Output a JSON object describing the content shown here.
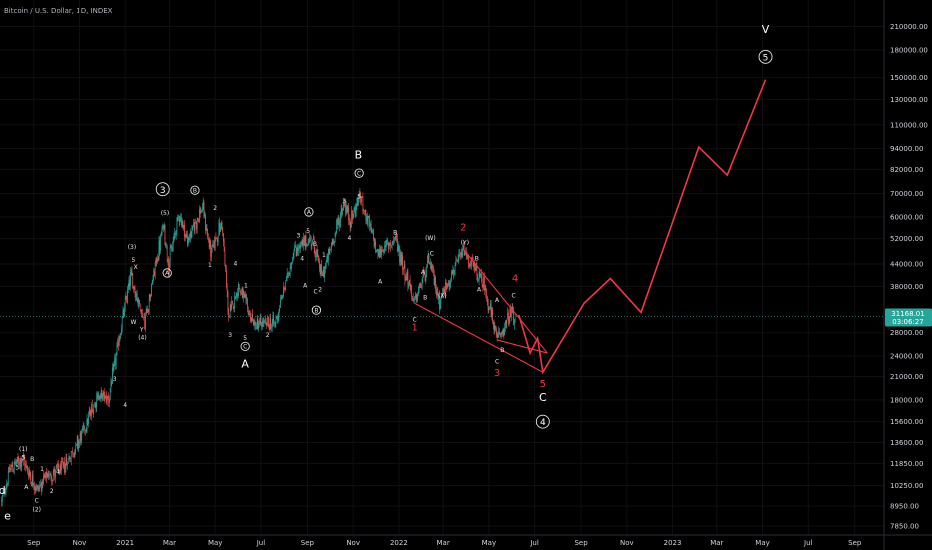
{
  "chart_data": {
    "type": "candlestick",
    "title": "Bitcoin / U.S. Dollar, 1D, INDEX",
    "y_scale": "log",
    "ylim": [
      7400,
      250000
    ],
    "xlim": [
      "2020-07-18",
      "2023-10-10"
    ],
    "y_ticks": [
      {
        "value": 7850,
        "label": "7850.00"
      },
      {
        "value": 8950,
        "label": "8950.00"
      },
      {
        "value": 10250,
        "label": "10250.00"
      },
      {
        "value": 11850,
        "label": "11850.00"
      },
      {
        "value": 13600,
        "label": "13600.00"
      },
      {
        "value": 15600,
        "label": "15600.00"
      },
      {
        "value": 18000,
        "label": "18000.00"
      },
      {
        "value": 21000,
        "label": "21000.00"
      },
      {
        "value": 24000,
        "label": "24000.00"
      },
      {
        "value": 28000,
        "label": "28000.00"
      },
      {
        "value": 38000,
        "label": "38000.00"
      },
      {
        "value": 44000,
        "label": "44000.00"
      },
      {
        "value": 52000,
        "label": "52000.00"
      },
      {
        "value": 60000,
        "label": "60000.00"
      },
      {
        "value": 70000,
        "label": "70000.00"
      },
      {
        "value": 82000,
        "label": "82000.00"
      },
      {
        "value": 94000,
        "label": "94000.00"
      },
      {
        "value": 110000,
        "label": "110000.00"
      },
      {
        "value": 130000,
        "label": "130000.00"
      },
      {
        "value": 150000,
        "label": "150000.00"
      },
      {
        "value": 180000,
        "label": "180000.00"
      },
      {
        "value": 210000,
        "label": "210000.00"
      }
    ],
    "x_ticks": [
      {
        "date": "2020-09-01",
        "label": "Sep"
      },
      {
        "date": "2020-11-01",
        "label": "Nov"
      },
      {
        "date": "2021-01-01",
        "label": "2021"
      },
      {
        "date": "2021-03-01",
        "label": "Mar"
      },
      {
        "date": "2021-05-01",
        "label": "May"
      },
      {
        "date": "2021-07-01",
        "label": "Jul"
      },
      {
        "date": "2021-09-01",
        "label": "Sep"
      },
      {
        "date": "2021-11-01",
        "label": "Nov"
      },
      {
        "date": "2022-01-01",
        "label": "2022"
      },
      {
        "date": "2022-03-01",
        "label": "Mar"
      },
      {
        "date": "2022-05-01",
        "label": "May"
      },
      {
        "date": "2022-07-01",
        "label": "Jul"
      },
      {
        "date": "2022-09-01",
        "label": "Sep"
      },
      {
        "date": "2022-11-01",
        "label": "Nov"
      },
      {
        "date": "2023-01-01",
        "label": "2023"
      },
      {
        "date": "2023-03-01",
        "label": "Mar"
      },
      {
        "date": "2023-05-01",
        "label": "May"
      },
      {
        "date": "2023-07-01",
        "label": "Jul"
      },
      {
        "date": "2023-09-01",
        "label": "Sep"
      }
    ],
    "price_path": [
      [
        "2020-07-20",
        9200
      ],
      [
        "2020-08-01",
        11500
      ],
      [
        "2020-08-17",
        12200
      ],
      [
        "2020-09-05",
        10000
      ],
      [
        "2020-09-20",
        10900
      ],
      [
        "2020-10-10",
        11500
      ],
      [
        "2020-11-01",
        13800
      ],
      [
        "2020-11-25",
        18500
      ],
      [
        "2020-12-10",
        18200
      ],
      [
        "2021-01-08",
        41000
      ],
      [
        "2021-01-27",
        30000
      ],
      [
        "2021-02-21",
        57000
      ],
      [
        "2021-02-28",
        44000
      ],
      [
        "2021-03-14",
        61500
      ],
      [
        "2021-03-25",
        51000
      ],
      [
        "2021-04-14",
        64000
      ],
      [
        "2021-04-25",
        47500
      ],
      [
        "2021-05-10",
        58000
      ],
      [
        "2021-05-19",
        31000
      ],
      [
        "2021-06-01",
        38000
      ],
      [
        "2021-06-22",
        29500
      ],
      [
        "2021-07-20",
        29800
      ],
      [
        "2021-08-14",
        48000
      ],
      [
        "2021-09-07",
        52000
      ],
      [
        "2021-09-21",
        40500
      ],
      [
        "2021-10-20",
        66000
      ],
      [
        "2021-10-28",
        58000
      ],
      [
        "2021-11-10",
        69000
      ],
      [
        "2021-12-04",
        47000
      ],
      [
        "2021-12-27",
        52000
      ],
      [
        "2022-01-22",
        34000
      ],
      [
        "2022-02-10",
        45000
      ],
      [
        "2022-02-24",
        34500
      ],
      [
        "2022-03-28",
        48000
      ],
      [
        "2022-04-25",
        38000
      ],
      [
        "2022-05-12",
        26700
      ],
      [
        "2022-05-31",
        31800
      ],
      [
        "2022-06-05",
        30000
      ]
    ],
    "projection": [
      [
        "2022-06-10",
        31500
      ],
      [
        "2022-06-25",
        24500
      ],
      [
        "2022-07-05",
        27000
      ],
      [
        "2022-07-12",
        21600
      ],
      [
        "2022-09-05",
        34000
      ],
      [
        "2022-10-10",
        40000
      ],
      [
        "2022-11-20",
        32000
      ],
      [
        "2023-02-05",
        95000
      ],
      [
        "2023-03-15",
        79000
      ],
      [
        "2023-05-05",
        148000
      ]
    ],
    "channel_upper": [
      [
        "2022-03-28",
        48500
      ],
      [
        "2022-07-18",
        24500
      ]
    ],
    "channel_lower": [
      [
        "2022-01-22",
        34000
      ],
      [
        "2022-07-12",
        21600
      ]
    ],
    "inner_lower": [
      [
        "2022-05-12",
        26700
      ],
      [
        "2022-07-18",
        24500
      ]
    ],
    "current_price": {
      "value": 31168.01,
      "label": "31168.01",
      "countdown": "03:06:27",
      "color": "#26a69a"
    },
    "colors": {
      "up": "#26a69a",
      "down": "#ef5350",
      "projection": "#f23645"
    },
    "wave_labels": [
      {
        "text": "d",
        "date": "2020-07-21",
        "price": 9900,
        "style": "big"
      },
      {
        "text": "e",
        "date": "2020-07-28",
        "price": 8350,
        "style": "big"
      },
      {
        "text": "(1)",
        "date": "2020-08-18",
        "price": 13100,
        "style": "small"
      },
      {
        "text": "5",
        "date": "2020-08-18",
        "price": 12400,
        "style": "small"
      },
      {
        "text": "3",
        "date": "2020-08-10",
        "price": 11600,
        "style": "small"
      },
      {
        "text": "B",
        "date": "2020-08-30",
        "price": 12300,
        "style": "small"
      },
      {
        "text": "1",
        "date": "2020-09-12",
        "price": 11500,
        "style": "small"
      },
      {
        "text": "A",
        "date": "2020-08-22",
        "price": 10200,
        "style": "small"
      },
      {
        "text": "C",
        "date": "2020-09-05",
        "price": 9350,
        "style": "small"
      },
      {
        "text": "(2)",
        "date": "2020-09-05",
        "price": 8800,
        "style": "small"
      },
      {
        "text": "2",
        "date": "2020-09-25",
        "price": 9950,
        "style": "small"
      },
      {
        "text": "4",
        "date": "2020-10-03",
        "price": 11300,
        "style": "small"
      },
      {
        "text": "3",
        "date": "2020-12-18",
        "price": 20800,
        "style": "small"
      },
      {
        "text": "4",
        "date": "2021-01-01",
        "price": 17500,
        "style": "small"
      },
      {
        "text": "(3)",
        "date": "2021-01-10",
        "price": 49500,
        "style": "small"
      },
      {
        "text": "5",
        "date": "2021-01-12",
        "price": 45500,
        "style": "small"
      },
      {
        "text": "X",
        "date": "2021-01-15",
        "price": 43500,
        "style": "small"
      },
      {
        "text": "W",
        "date": "2021-01-12",
        "price": 30200,
        "style": "small"
      },
      {
        "text": "Y",
        "date": "2021-01-23",
        "price": 28800,
        "style": "small"
      },
      {
        "text": "(4)",
        "date": "2021-01-24",
        "price": 27300,
        "style": "small"
      },
      {
        "text": "(5)",
        "date": "2021-02-23",
        "price": 62000,
        "style": "small"
      },
      {
        "text": "A",
        "date": "2021-02-26",
        "price": 41500,
        "style": "circle"
      },
      {
        "text": "3",
        "date": "2021-02-20",
        "price": 72000,
        "style": "circlebig"
      },
      {
        "text": "B",
        "date": "2021-04-04",
        "price": 71500,
        "style": "circle"
      },
      {
        "text": "2",
        "date": "2021-05-01",
        "price": 64000,
        "style": "small"
      },
      {
        "text": "1",
        "date": "2021-04-24",
        "price": 44000,
        "style": "small"
      },
      {
        "text": "4",
        "date": "2021-05-28",
        "price": 44500,
        "style": "small"
      },
      {
        "text": "1",
        "date": "2021-06-11",
        "price": 38500,
        "style": "small"
      },
      {
        "text": "3",
        "date": "2021-05-21",
        "price": 27800,
        "style": "small"
      },
      {
        "text": "5",
        "date": "2021-06-10",
        "price": 27200,
        "style": "small"
      },
      {
        "text": "2",
        "date": "2021-07-10",
        "price": 27800,
        "style": "small"
      },
      {
        "text": "C",
        "date": "2021-06-10",
        "price": 25600,
        "style": "circle"
      },
      {
        "text": "A",
        "date": "2021-06-10",
        "price": 22700,
        "style": "bigplain"
      },
      {
        "text": "3",
        "date": "2021-08-20",
        "price": 53500,
        "style": "small"
      },
      {
        "text": "5",
        "date": "2021-09-02",
        "price": 55000,
        "style": "small"
      },
      {
        "text": "A",
        "date": "2021-09-03",
        "price": 62000,
        "style": "circle"
      },
      {
        "text": "B",
        "date": "2021-09-11",
        "price": 50500,
        "style": "small"
      },
      {
        "text": "1",
        "date": "2021-09-23",
        "price": 47000,
        "style": "small"
      },
      {
        "text": "4",
        "date": "2021-08-25",
        "price": 46000,
        "style": "small"
      },
      {
        "text": "A",
        "date": "2021-08-29",
        "price": 38500,
        "style": "small"
      },
      {
        "text": "C",
        "date": "2021-09-12",
        "price": 37000,
        "style": "small"
      },
      {
        "text": "2",
        "date": "2021-09-18",
        "price": 37500,
        "style": "small"
      },
      {
        "text": "B",
        "date": "2021-09-13",
        "price": 32500,
        "style": "circle"
      },
      {
        "text": "3",
        "date": "2021-10-20",
        "price": 67000,
        "style": "small"
      },
      {
        "text": "5",
        "date": "2021-11-09",
        "price": 69000,
        "style": "small"
      },
      {
        "text": "4",
        "date": "2021-10-27",
        "price": 52500,
        "style": "small"
      },
      {
        "text": "B",
        "date": "2021-11-08",
        "price": 90000,
        "style": "bigplain"
      },
      {
        "text": "C",
        "date": "2021-11-09",
        "price": 80000,
        "style": "circle"
      },
      {
        "text": "A",
        "date": "2021-12-07",
        "price": 39500,
        "style": "small"
      },
      {
        "text": "B",
        "date": "2021-12-27",
        "price": 54500,
        "style": "small"
      },
      {
        "text": "C",
        "date": "2022-01-22",
        "price": 30800,
        "style": "small"
      },
      {
        "text": "B",
        "date": "2022-02-05",
        "price": 35500,
        "style": "small"
      },
      {
        "text": "(W)",
        "date": "2022-02-12",
        "price": 52500,
        "style": "small"
      },
      {
        "text": "C",
        "date": "2022-02-14",
        "price": 47500,
        "style": "small"
      },
      {
        "text": "A",
        "date": "2022-02-02",
        "price": 42000,
        "style": "small"
      },
      {
        "text": "(X)",
        "date": "2022-02-28",
        "price": 36000,
        "style": "small"
      },
      {
        "text": "(Y)",
        "date": "2022-03-30",
        "price": 51000,
        "style": "small"
      },
      {
        "text": "B",
        "date": "2022-04-15",
        "price": 46000,
        "style": "small"
      },
      {
        "text": "A",
        "date": "2022-04-18",
        "price": 37500,
        "style": "small"
      },
      {
        "text": "A",
        "date": "2022-05-12",
        "price": 35000,
        "style": "small"
      },
      {
        "text": "B",
        "date": "2022-05-19",
        "price": 25200,
        "style": "small"
      },
      {
        "text": "C",
        "date": "2022-05-12",
        "price": 23300,
        "style": "small"
      },
      {
        "text": "C",
        "date": "2022-06-03",
        "price": 36000,
        "style": "small"
      },
      {
        "text": "2",
        "date": "2022-03-28",
        "price": 56000,
        "style": "red"
      },
      {
        "text": "1",
        "date": "2022-01-22",
        "price": 29000,
        "style": "red"
      },
      {
        "text": "3",
        "date": "2022-05-12",
        "price": 21500,
        "style": "red"
      },
      {
        "text": "4",
        "date": "2022-06-05",
        "price": 40000,
        "style": "red"
      },
      {
        "text": "5",
        "date": "2022-07-12",
        "price": 20000,
        "style": "red"
      },
      {
        "text": "C",
        "date": "2022-07-12",
        "price": 18200,
        "style": "bigplain"
      },
      {
        "text": "4",
        "date": "2022-07-12",
        "price": 15600,
        "style": "circlebig"
      },
      {
        "text": "V",
        "date": "2023-05-05",
        "price": 205000,
        "style": "bigplain"
      },
      {
        "text": "5",
        "date": "2023-05-05",
        "price": 172000,
        "style": "circlebig"
      }
    ]
  }
}
